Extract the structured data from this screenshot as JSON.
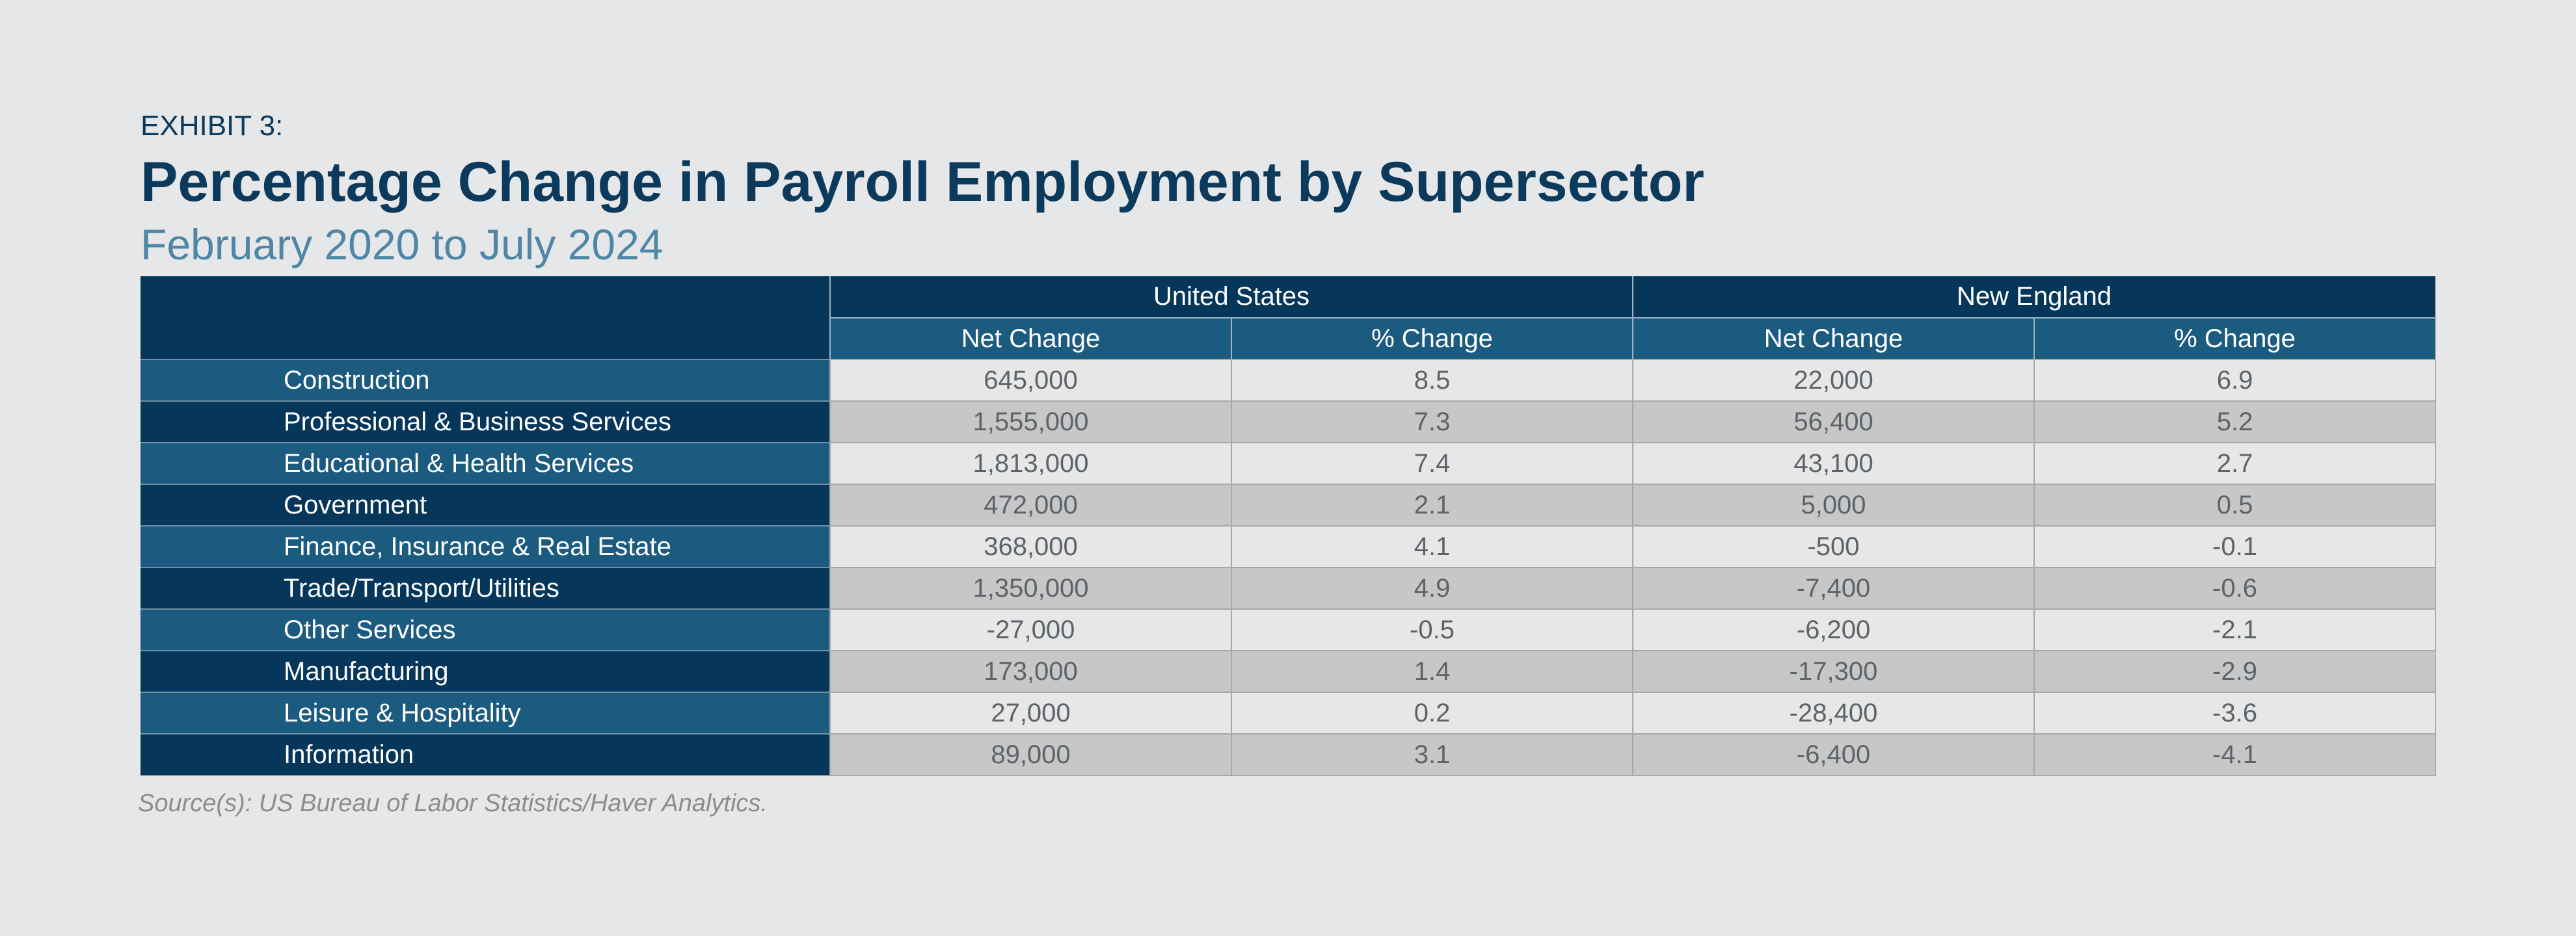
{
  "chart_data": {
    "type": "table",
    "exhibit_label": "EXHIBIT 3:",
    "title": "Percentage Change in Payroll Employment by Supersector",
    "subtitle": "February 2020 to July 2024",
    "column_groups": [
      "United States",
      "New England"
    ],
    "columns": [
      "Net Change",
      "% Change",
      "Net Change",
      "% Change"
    ],
    "rows": [
      {
        "label": "Construction",
        "values": [
          "645,000",
          "8.5",
          "22,000",
          "6.9"
        ]
      },
      {
        "label": "Professional & Business Services",
        "values": [
          "1,555,000",
          "7.3",
          "56,400",
          "5.2"
        ]
      },
      {
        "label": "Educational & Health Services",
        "values": [
          "1,813,000",
          "7.4",
          "43,100",
          "2.7"
        ]
      },
      {
        "label": "Government",
        "values": [
          "472,000",
          "2.1",
          "5,000",
          "0.5"
        ]
      },
      {
        "label": "Finance, Insurance & Real Estate",
        "values": [
          "368,000",
          "4.1",
          "-500",
          "-0.1"
        ]
      },
      {
        "label": "Trade/Transport/Utilities",
        "values": [
          "1,350,000",
          "4.9",
          "-7,400",
          "-0.6"
        ]
      },
      {
        "label": "Other Services",
        "values": [
          "-27,000",
          "-0.5",
          "-6,200",
          "-2.1"
        ]
      },
      {
        "label": "Manufacturing",
        "values": [
          "173,000",
          "1.4",
          "-17,300",
          "-2.9"
        ]
      },
      {
        "label": "Leisure & Hospitality",
        "values": [
          "27,000",
          "0.2",
          "-28,400",
          "-3.6"
        ]
      },
      {
        "label": "Information",
        "values": [
          "89,000",
          "3.1",
          "-6,400",
          "-4.1"
        ]
      }
    ],
    "source": "Source(s): US Bureau of Labor Statistics/Haver Analytics."
  },
  "colors": {
    "background": "#e6e7e8",
    "navy": "#06365a",
    "steel_blue": "#1b5b7f",
    "title": "#0b3a5c",
    "subtitle": "#4f86a6",
    "row_light": "#e6e7e8",
    "row_dark": "#c6c7c8",
    "value_text": "#5f6366",
    "source_text": "#8a8c8e"
  }
}
